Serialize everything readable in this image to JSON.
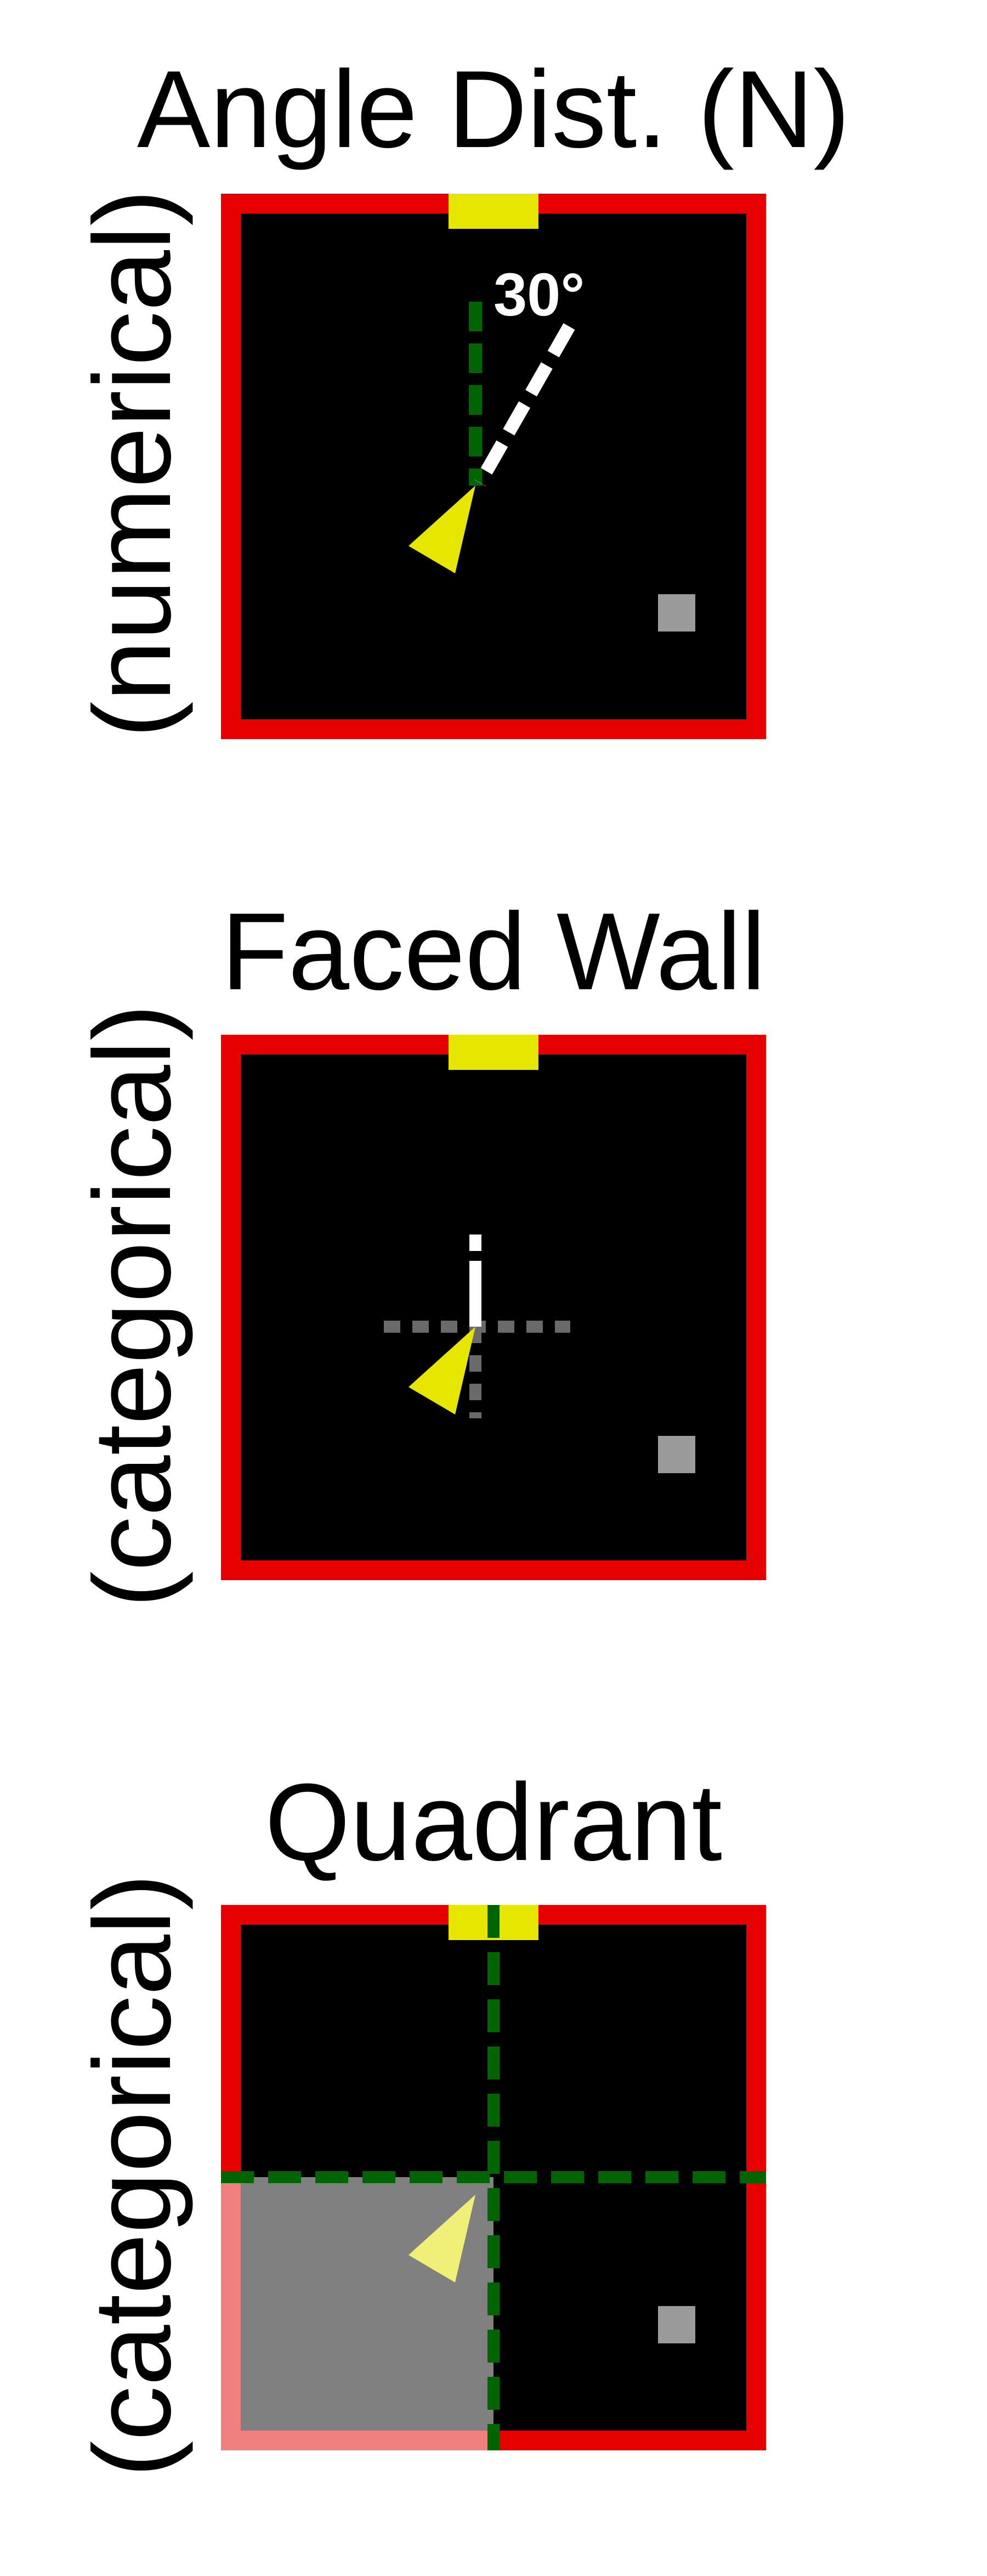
{
  "panels": [
    {
      "title": "Angle Dist. (N)",
      "ylabel": "(numerical)",
      "angle_label": "30°"
    },
    {
      "title": "Faced Wall",
      "ylabel": "(categorical)"
    },
    {
      "title": "Quadrant",
      "ylabel": "(categorical)"
    }
  ],
  "colors": {
    "wall": "#e60000",
    "floor": "#000000",
    "goal": "#e6e600",
    "agent": "#e6e600",
    "object": "#9a9a9a",
    "guide_green": "#006400",
    "highlight_wall": "#f08080",
    "highlight_floor": "#808080"
  }
}
